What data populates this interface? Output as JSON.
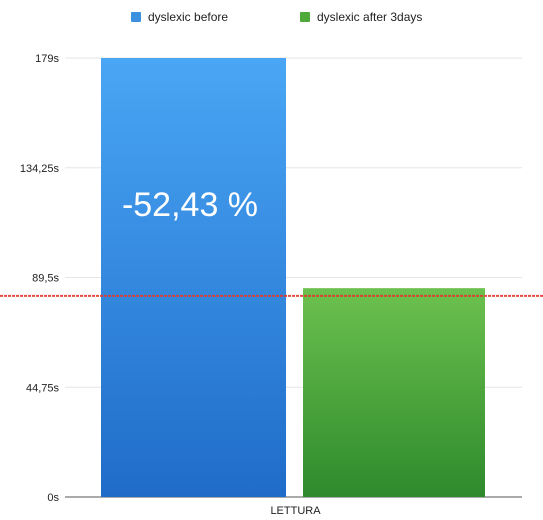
{
  "chart_data": {
    "type": "bar",
    "categories": [
      "LETTURA"
    ],
    "series": [
      {
        "name": "dyslexic before",
        "values": [
          179
        ],
        "color": "#3d8fe0"
      },
      {
        "name": "dyslexic after 3days",
        "values": [
          85.15
        ],
        "color": "#4fa83a"
      }
    ],
    "ylim": [
      0,
      179
    ],
    "yticks": [
      0,
      44.75,
      89.5,
      134.25,
      179
    ],
    "ytick_labels": [
      "0s",
      "44,75s",
      "89,5s",
      "134,25s",
      "179s"
    ],
    "reference_line": {
      "value": 82,
      "color": "#e03a2e"
    },
    "annotation": "-52,43 %",
    "legend_position": "top",
    "grid": true
  }
}
